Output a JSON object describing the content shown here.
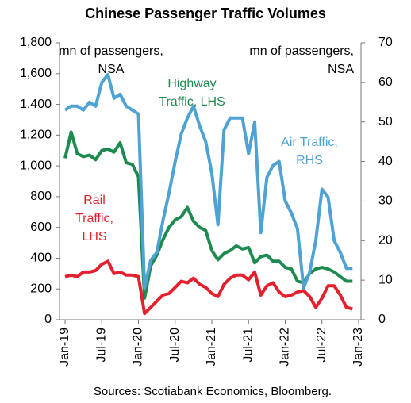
{
  "chart_data": {
    "type": "line",
    "title": "Chinese Passenger Traffic Volumes",
    "source": "Sources: Scotiabank Economics, Bloomberg.",
    "categories": [
      "Jan-19",
      null,
      null,
      null,
      null,
      null,
      "Jul-19",
      null,
      null,
      null,
      null,
      null,
      "Jan-20",
      null,
      null,
      null,
      null,
      null,
      "Jul-20",
      null,
      null,
      null,
      null,
      null,
      "Jan-21",
      null,
      null,
      null,
      null,
      null,
      "Jul-21",
      null,
      null,
      null,
      null,
      null,
      "Jan-22",
      null,
      null,
      null,
      null,
      null,
      "Jul-22",
      null,
      null,
      null,
      null,
      null,
      "Jan-23"
    ],
    "series": [
      {
        "name": "Highway Traffic, LHS",
        "color": "#1e8a4f",
        "axis": "y",
        "values": [
          1050,
          1220,
          1080,
          1060,
          1070,
          1040,
          1100,
          1110,
          1090,
          1150,
          1020,
          1010,
          930,
          140,
          350,
          420,
          520,
          600,
          650,
          670,
          730,
          640,
          600,
          580,
          450,
          390,
          430,
          450,
          480,
          460,
          470,
          370,
          410,
          420,
          380,
          380,
          340,
          330,
          250,
          240,
          300,
          330,
          340,
          330,
          310,
          280,
          250,
          250,
          null
        ]
      },
      {
        "name": "Rail Traffic, LHS",
        "color": "#e5202e",
        "axis": "y",
        "values": [
          280,
          290,
          280,
          310,
          310,
          320,
          360,
          380,
          300,
          310,
          290,
          290,
          280,
          40,
          80,
          120,
          160,
          170,
          210,
          250,
          240,
          270,
          230,
          210,
          170,
          150,
          230,
          270,
          290,
          290,
          260,
          310,
          160,
          220,
          240,
          180,
          150,
          160,
          180,
          190,
          150,
          80,
          140,
          220,
          220,
          160,
          80,
          70,
          null
        ]
      },
      {
        "name": "Air Traffic, RHS",
        "color": "#4fa3d4",
        "axis": "y2",
        "values": [
          53,
          54,
          54,
          53,
          55,
          54,
          60,
          62,
          56,
          57,
          54,
          53,
          52,
          8,
          15,
          17,
          25,
          32,
          40,
          47,
          51,
          54,
          49,
          45,
          37,
          24,
          48,
          51,
          51,
          51,
          42,
          50,
          22,
          36,
          39,
          40,
          30,
          27,
          23,
          8,
          12,
          20,
          33,
          31,
          20,
          17,
          13,
          13,
          null
        ]
      }
    ],
    "annotations": [
      {
        "lines": [
          "mn of passengers,",
          "NSA"
        ],
        "color": "#000000"
      },
      {
        "lines": [
          "mn of passengers,",
          "NSA"
        ],
        "color": "#000000"
      },
      {
        "lines": [
          "Highway",
          "Traffic, LHS"
        ],
        "color": "#1e8a4f"
      },
      {
        "lines": [
          "Air Traffic,",
          "RHS"
        ],
        "color": "#4fa3d4"
      },
      {
        "lines": [
          "Rail",
          "Traffic,",
          "LHS"
        ],
        "color": "#e5202e"
      }
    ],
    "ylim": [
      0,
      1800
    ],
    "yticks": [
      0,
      200,
      400,
      600,
      800,
      {
        "value": 1000,
        "label": "1,000"
      },
      {
        "value": 1200,
        "label": "1,200"
      },
      {
        "value": 1400,
        "label": "1,400"
      },
      {
        "value": 1600,
        "label": "1,600"
      },
      {
        "value": 1800,
        "label": "1,800"
      }
    ],
    "y2lim": [
      0,
      70
    ],
    "y2ticks": [
      0,
      10,
      20,
      30,
      40,
      50,
      60,
      70
    ],
    "grid": false
  }
}
